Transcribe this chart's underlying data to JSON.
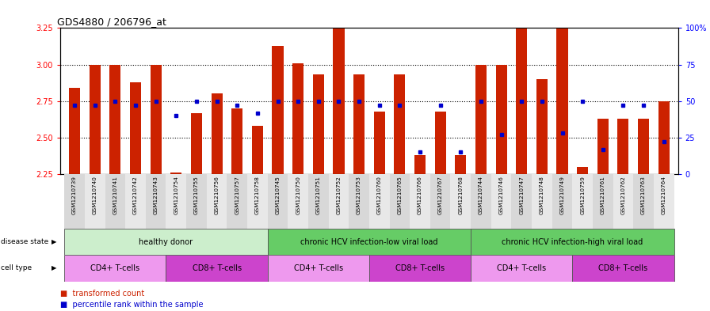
{
  "title": "GDS4880 / 206796_at",
  "samples": [
    "GSM1210739",
    "GSM1210740",
    "GSM1210741",
    "GSM1210742",
    "GSM1210743",
    "GSM1210754",
    "GSM1210755",
    "GSM1210756",
    "GSM1210757",
    "GSM1210758",
    "GSM1210745",
    "GSM1210750",
    "GSM1210751",
    "GSM1210752",
    "GSM1210753",
    "GSM1210760",
    "GSM1210765",
    "GSM1210766",
    "GSM1210767",
    "GSM1210768",
    "GSM1210744",
    "GSM1210746",
    "GSM1210747",
    "GSM1210748",
    "GSM1210749",
    "GSM1210759",
    "GSM1210761",
    "GSM1210762",
    "GSM1210763",
    "GSM1210764"
  ],
  "red_values": [
    2.84,
    3.0,
    3.0,
    2.88,
    3.0,
    2.26,
    2.67,
    2.8,
    2.7,
    2.58,
    3.13,
    3.01,
    2.93,
    3.25,
    2.93,
    2.68,
    2.93,
    2.38,
    2.68,
    2.38,
    3.0,
    3.0,
    3.25,
    2.9,
    3.25,
    2.3,
    2.63,
    2.63,
    2.63,
    2.75
  ],
  "blue_values_pct": [
    47,
    47,
    50,
    47,
    50,
    40,
    50,
    50,
    47,
    42,
    50,
    50,
    50,
    50,
    50,
    47,
    47,
    15,
    47,
    15,
    50,
    27,
    50,
    50,
    28,
    50,
    17,
    47,
    47,
    22
  ],
  "ylim": [
    2.25,
    3.25
  ],
  "yticks_left": [
    2.25,
    2.5,
    2.75,
    3.0,
    3.25
  ],
  "yticks_right": [
    0,
    25,
    50,
    75,
    100
  ],
  "ytick_labels_right": [
    "0",
    "25",
    "50",
    "75",
    "100%"
  ],
  "bar_color": "#cc2200",
  "blue_color": "#0000cc",
  "baseline": 2.25,
  "bg_color": "#ffffff",
  "ds_groups": [
    {
      "label": "healthy donor",
      "start": 0,
      "end": 10,
      "color": "#cceecc"
    },
    {
      "label": "chronic HCV infection-low viral load",
      "start": 10,
      "end": 20,
      "color": "#66cc66"
    },
    {
      "label": "chronic HCV infection-high viral load",
      "start": 20,
      "end": 30,
      "color": "#66cc66"
    }
  ],
  "ct_groups": [
    {
      "label": "CD4+ T-cells",
      "start": 0,
      "end": 5,
      "color": "#ee99ee"
    },
    {
      "label": "CD8+ T-cells",
      "start": 5,
      "end": 10,
      "color": "#cc44cc"
    },
    {
      "label": "CD4+ T-cells",
      "start": 10,
      "end": 15,
      "color": "#ee99ee"
    },
    {
      "label": "CD8+ T-cells",
      "start": 15,
      "end": 20,
      "color": "#cc44cc"
    },
    {
      "label": "CD4+ T-cells",
      "start": 20,
      "end": 25,
      "color": "#ee99ee"
    },
    {
      "label": "CD8+ T-cells",
      "start": 25,
      "end": 30,
      "color": "#cc44cc"
    }
  ]
}
